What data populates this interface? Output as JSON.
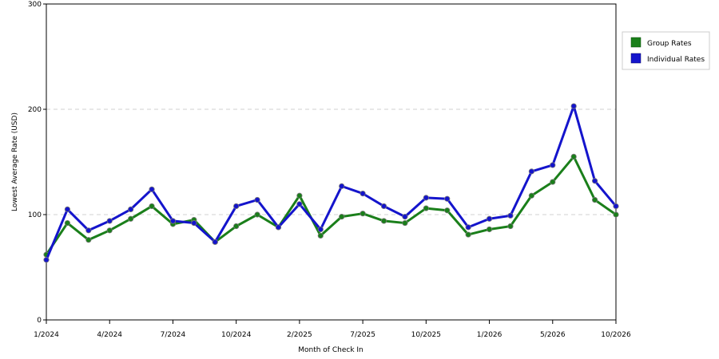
{
  "chart_data": {
    "type": "line",
    "title": "",
    "xlabel": "Month of Check In",
    "ylabel": "Lowest Average Rate (USD)",
    "ylim": [
      0,
      300
    ],
    "yticks": [
      0,
      100,
      200,
      300
    ],
    "grid": "horizontal dashed",
    "legend_position": "right",
    "x_tick_labels": [
      "1/2024",
      "4/2024",
      "7/2024",
      "10/2024",
      "2/2025",
      "7/2025",
      "10/2025",
      "1/2026",
      "5/2026",
      "10/2026"
    ],
    "x_tick_indices": [
      0,
      3,
      6,
      9,
      12,
      15,
      18,
      21,
      24,
      27
    ],
    "points": 28,
    "series": [
      {
        "name": "Group Rates",
        "color": "#1a7f1a",
        "values": [
          62,
          92,
          76,
          85,
          96,
          108,
          91,
          95,
          74,
          89,
          100,
          88,
          118,
          80,
          98,
          101,
          94,
          92,
          106,
          104,
          81,
          86,
          89,
          118,
          131,
          155,
          114,
          100
        ]
      },
      {
        "name": "Individual Rates",
        "color": "#1414cc",
        "values": [
          57,
          105,
          85,
          94,
          105,
          124,
          94,
          92,
          74,
          108,
          114,
          88,
          110,
          86,
          127,
          120,
          108,
          98,
          116,
          115,
          88,
          96,
          99,
          141,
          147,
          203,
          132,
          108
        ]
      }
    ]
  }
}
